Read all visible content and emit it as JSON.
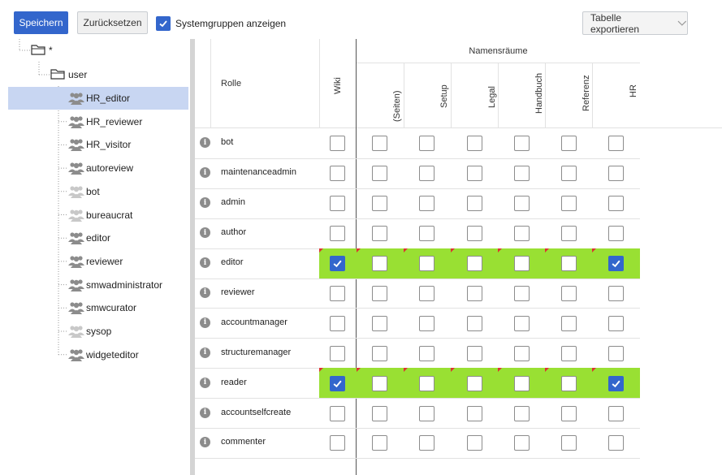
{
  "toolbar": {
    "save_label": "Speichern",
    "reset_label": "Zurücksetzen",
    "show_system_groups_label": "Systemgruppen anzeigen",
    "show_system_groups_checked": true,
    "export_label": "Tabelle exportieren"
  },
  "tree": {
    "root_label": "*",
    "user_label": "user",
    "selected": "HR_editor",
    "groups": [
      {
        "label": "HR_editor",
        "system": false
      },
      {
        "label": "HR_reviewer",
        "system": false
      },
      {
        "label": "HR_visitor",
        "system": false
      },
      {
        "label": "autoreview",
        "system": false
      },
      {
        "label": "bot",
        "system": true
      },
      {
        "label": "bureaucrat",
        "system": true
      },
      {
        "label": "editor",
        "system": false
      },
      {
        "label": "reviewer",
        "system": false
      },
      {
        "label": "smwadministrator",
        "system": false
      },
      {
        "label": "smwcurator",
        "system": false
      },
      {
        "label": "sysop",
        "system": true
      },
      {
        "label": "widgeteditor",
        "system": false
      }
    ]
  },
  "grid": {
    "role_header": "Rolle",
    "wiki_header": "Wiki",
    "namespaces_header": "Namensräume",
    "namespaces": [
      "(Seiten)",
      "Setup",
      "Legal",
      "Handbuch",
      "Referenz",
      "HR"
    ],
    "rows": [
      {
        "role": "bot",
        "wiki": false,
        "ns": [
          false,
          false,
          false,
          false,
          false,
          false
        ],
        "highlight": false
      },
      {
        "role": "maintenanceadmin",
        "wiki": false,
        "ns": [
          false,
          false,
          false,
          false,
          false,
          false
        ],
        "highlight": false
      },
      {
        "role": "admin",
        "wiki": false,
        "ns": [
          false,
          false,
          false,
          false,
          false,
          false
        ],
        "highlight": false
      },
      {
        "role": "author",
        "wiki": false,
        "ns": [
          false,
          false,
          false,
          false,
          false,
          false
        ],
        "highlight": false
      },
      {
        "role": "editor",
        "wiki": true,
        "ns": [
          false,
          false,
          false,
          false,
          false,
          true
        ],
        "highlight": true
      },
      {
        "role": "reviewer",
        "wiki": false,
        "ns": [
          false,
          false,
          false,
          false,
          false,
          false
        ],
        "highlight": false
      },
      {
        "role": "accountmanager",
        "wiki": false,
        "ns": [
          false,
          false,
          false,
          false,
          false,
          false
        ],
        "highlight": false
      },
      {
        "role": "structuremanager",
        "wiki": false,
        "ns": [
          false,
          false,
          false,
          false,
          false,
          false
        ],
        "highlight": false
      },
      {
        "role": "reader",
        "wiki": true,
        "ns": [
          false,
          false,
          false,
          false,
          false,
          true
        ],
        "highlight": true
      },
      {
        "role": "accountselfcreate",
        "wiki": false,
        "ns": [
          false,
          false,
          false,
          false,
          false,
          false
        ],
        "highlight": false
      },
      {
        "role": "commenter",
        "wiki": false,
        "ns": [
          false,
          false,
          false,
          false,
          false,
          false
        ],
        "highlight": false
      }
    ]
  },
  "colors": {
    "accent": "#3366cc",
    "highlight_row": "#99e033",
    "selected_tree": "#c8d6f2",
    "changed_flag": "#dd3333"
  },
  "icons": [
    "info-icon",
    "folder-icon",
    "group-icon",
    "checkmark-icon",
    "chevron-down-icon"
  ]
}
